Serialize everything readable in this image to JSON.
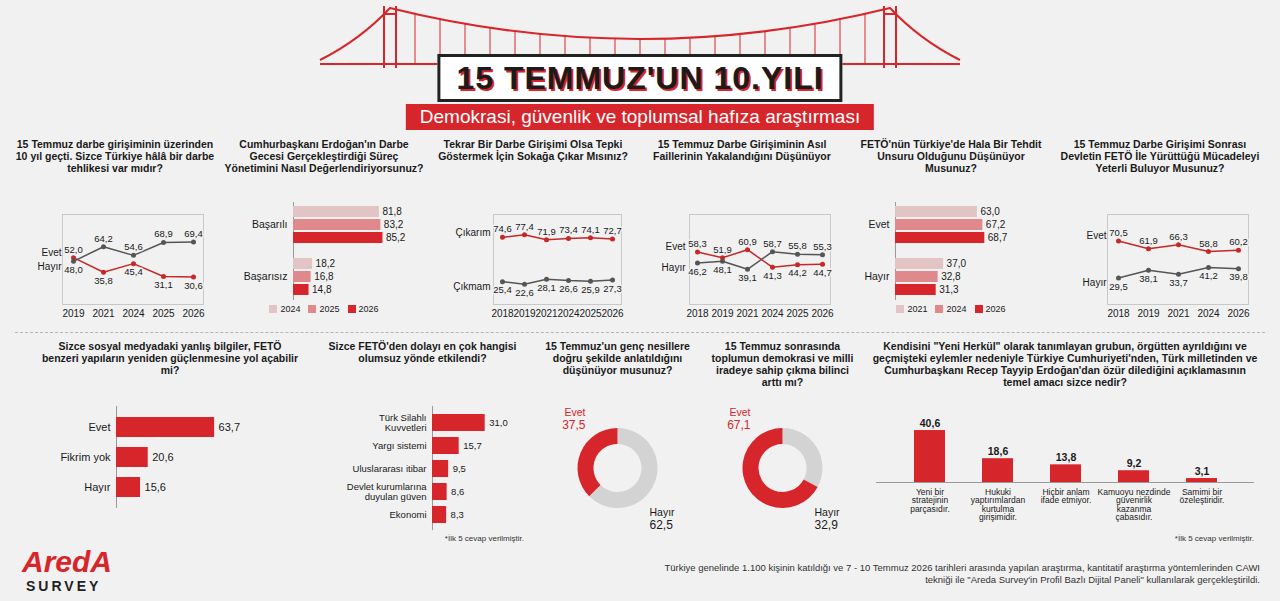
{
  "header": {
    "title": "15 TEMMUZ'UN 10.YILI",
    "subtitle": "Demokrasi, güvenlik ve toplumsal hafıza araştırması"
  },
  "logo": {
    "text": "AredA",
    "subtext": "SURVEY"
  },
  "source_note": "Türkiye genelinde 1.100 kişinin katıldığı ve 7 - 10 Temmuz 2026 tarihleri arasında yapılan araştırma, kantitatif araştırma yöntemlerinden CAWI tekniği ile \"Areda Survey'in Profil Bazlı Dijital Paneli\" kullanılarak gerçekleştirildi.",
  "chart_data": [
    {
      "type": "line",
      "title": "15 Temmuz darbe girişiminin üzerinden 10 yıl geçti. Sizce Türkiye hâlâ bir darbe tehlikesi var mıdır?",
      "categories": [
        "2019",
        "2021",
        "2024",
        "2025",
        "2026"
      ],
      "series": [
        {
          "name": "Evet",
          "color": "#c62828",
          "values": [
            52.0,
            35.8,
            45.4,
            31.1,
            30.6
          ],
          "value_labels": [
            "52,0",
            "35,8",
            "45,4",
            "31,1",
            "30,6"
          ]
        },
        {
          "name": "Hayır",
          "color": "#555555",
          "values": [
            48.0,
            64.2,
            54.6,
            68.9,
            69.4
          ],
          "value_labels": [
            "48,0",
            "64,2",
            "54,6",
            "68,9",
            "69,4"
          ]
        }
      ],
      "ylim": [
        0,
        100
      ],
      "data_labels": true,
      "tick_labels": "x",
      "marker": "circle"
    },
    {
      "type": "bar",
      "orientation": "horizontal",
      "title": "Cumhurbaşkanı Erdoğan'ın Darbe Gecesi Gerçekleştirdiği Süreç Yönetimini Nasıl Değerlendiriyorsunuz?",
      "categories": [
        "Başarılı",
        "Başarısız"
      ],
      "series": [
        {
          "name": "2024",
          "color": "#e2c4c5",
          "values": [
            81.8,
            18.2
          ],
          "value_labels": [
            "81,8",
            "18,2"
          ]
        },
        {
          "name": "2025",
          "color": "#e0898c",
          "values": [
            83.2,
            16.8
          ],
          "value_labels": [
            "83,2",
            "16,8"
          ]
        },
        {
          "name": "2026",
          "color": "#d7262b",
          "values": [
            85.2,
            14.8
          ],
          "value_labels": [
            "85,2",
            "14,8"
          ]
        }
      ],
      "xlim": [
        0,
        100
      ],
      "data_labels": true,
      "tick_labels": "y",
      "legend": "bottom"
    },
    {
      "type": "line",
      "title": "Tekrar Bir Darbe Girişimi Olsa Tepki Göstermek İçin Sokağa Çıkar Mısınız?",
      "categories": [
        "2018",
        "2019",
        "2021",
        "2024",
        "2025",
        "2026"
      ],
      "series": [
        {
          "name": "Çıkarım",
          "color": "#c62828",
          "values": [
            74.6,
            77.4,
            71.9,
            73.4,
            74.1,
            72.7
          ],
          "value_labels": [
            "74,6",
            "77,4",
            "71,9",
            "73,4",
            "74,1",
            "72,7"
          ]
        },
        {
          "name": "Çıkmam",
          "color": "#555555",
          "values": [
            25.4,
            22.6,
            28.1,
            26.6,
            25.9,
            27.3
          ],
          "value_labels": [
            "25,4",
            "22,6",
            "28,1",
            "26,6",
            "25,9",
            "27,3"
          ]
        }
      ],
      "ylim": [
        0,
        100
      ],
      "data_labels": true,
      "tick_labels": "x",
      "marker": "circle"
    },
    {
      "type": "line",
      "title": "15 Temmuz Darbe Girişiminin Asıl Faillerinin Yakalandığını Düşünüyor",
      "categories": [
        "2018",
        "2019",
        "2021",
        "2024",
        "2025",
        "2026"
      ],
      "series": [
        {
          "name": "Evet",
          "color": "#c62828",
          "values": [
            58.3,
            51.9,
            60.9,
            41.3,
            44.2,
            44.7
          ],
          "value_labels": [
            "58,3",
            "51,9",
            "60,9",
            "41,3",
            "44,2",
            "44,7"
          ]
        },
        {
          "name": "Hayır",
          "color": "#555555",
          "values": [
            46.2,
            48.1,
            39.1,
            58.7,
            55.8,
            55.3
          ],
          "value_labels": [
            "46,2",
            "48,1",
            "39,1",
            "58,7",
            "55,8",
            "55,3"
          ]
        }
      ],
      "ylim": [
        0,
        100
      ],
      "data_labels": true,
      "tick_labels": "x",
      "marker": "circle"
    },
    {
      "type": "bar",
      "orientation": "horizontal",
      "title": "FETÖ'nün Türkiye'de Hala Bir Tehdit Unsuru Olduğunu Düşünüyor Musunuz?",
      "categories": [
        "Evet",
        "Hayır"
      ],
      "series": [
        {
          "name": "2021",
          "color": "#e2c4c5",
          "values": [
            63.0,
            37.0
          ],
          "value_labels": [
            "63,0",
            "37,0"
          ]
        },
        {
          "name": "2024",
          "color": "#e0898c",
          "values": [
            67.2,
            32.8
          ],
          "value_labels": [
            "67,2",
            "32,8"
          ]
        },
        {
          "name": "2026",
          "color": "#d7262b",
          "values": [
            68.7,
            31.3
          ],
          "value_labels": [
            "68,7",
            "31,3"
          ]
        }
      ],
      "xlim": [
        0,
        100
      ],
      "data_labels": true,
      "tick_labels": "y",
      "legend": "bottom"
    },
    {
      "type": "line",
      "title": "15 Temmuz Darbe Girişimi Sonrası Devletin FETÖ İle Yürüttüğü Mücadeleyi Yeterli Buluyor Musunuz?",
      "categories": [
        "2018",
        "2019",
        "2021",
        "2024",
        "2026"
      ],
      "series": [
        {
          "name": "Evet",
          "color": "#c62828",
          "values": [
            70.5,
            61.9,
            66.3,
            58.8,
            60.2
          ],
          "value_labels": [
            "70,5",
            "61,9",
            "66,3",
            "58,8",
            "60,2"
          ]
        },
        {
          "name": "Hayır",
          "color": "#555555",
          "values": [
            29.5,
            38.1,
            33.7,
            41.2,
            39.8
          ],
          "value_labels": [
            "29,5",
            "38,1",
            "33,7",
            "41,2",
            "39,8"
          ]
        }
      ],
      "ylim": [
        0,
        100
      ],
      "data_labels": true,
      "tick_labels": "x",
      "marker": "circle"
    },
    {
      "type": "bar",
      "orientation": "horizontal",
      "title": "Sizce sosyal medyadaki yanlış bilgiler, FETÖ benzeri yapıların yeniden güçlenmesine yol açabilir mi?",
      "categories": [
        "Evet",
        "Fikrim yok",
        "Hayır"
      ],
      "values": [
        63.7,
        20.6,
        15.6
      ],
      "value_labels": [
        "63,7",
        "20,6",
        "15,6"
      ],
      "color": "#d7262b",
      "xlim": [
        0,
        100
      ],
      "data_labels": true,
      "tick_labels": "y"
    },
    {
      "type": "bar",
      "orientation": "horizontal",
      "title": "Sizce FETÖ'den dolayı en çok hangisi olumsuz yönde etkilendi?",
      "categories": [
        "Türk Silahlı Kuvvetleri",
        "Yargı sistemi",
        "Uluslararası itibar",
        "Devlet kurumlarına duyulan güven",
        "Ekonomi"
      ],
      "values": [
        31.0,
        15.7,
        9.5,
        8.6,
        8.3
      ],
      "value_labels": [
        "31,0",
        "15,7",
        "9,5",
        "8,6",
        "8,3"
      ],
      "color": "#d7262b",
      "xlim": [
        0,
        40
      ],
      "data_labels": true,
      "tick_labels": "y",
      "annotations": [
        "*İlk 5 cevap verilmiştir."
      ]
    },
    {
      "type": "pie",
      "title": "15 Temmuz'un genç nesillere doğru şekilde anlatıldığını düşünüyor musunuz?",
      "categories": [
        "Evet",
        "Hayır"
      ],
      "values": [
        37.5,
        62.5
      ],
      "value_labels": [
        "37,5",
        "62,5"
      ],
      "colors": [
        "#d7262b",
        "#d3d3d3"
      ],
      "data_labels": true
    },
    {
      "type": "pie",
      "title": "15 Temmuz sonrasında toplumun demokrasi ve milli iradeye sahip çıkma bilinci arttı mı?",
      "categories": [
        "Evet",
        "Hayır"
      ],
      "values": [
        67.1,
        32.9
      ],
      "value_labels": [
        "67,1",
        "32,9"
      ],
      "colors": [
        "#d7262b",
        "#d3d3d3"
      ],
      "data_labels": true
    },
    {
      "type": "bar",
      "title": "Kendisini \"Yeni Herkül\" olarak tanımlayan grubun, örgütten ayrıldığını ve geçmişteki eylemler nedeniyle Türkiye Cumhuriyeti'nden, Türk milletinden ve Cumhurbaşkanı Recep Tayyip Erdoğan'dan özür dilediğini açıklamasının temel amacı sizce nedir?",
      "categories": [
        "Yeni bir stratejinin parçasıdır.",
        "Hukuki yaptırımlardan kurtulma girişimidir.",
        "Hiçbir anlam ifade etmiyor.",
        "Kamuoyu nezdinde güvenirlik kazanma çabasıdır.",
        "Samimi bir özeleştiridir."
      ],
      "values": [
        40.6,
        18.6,
        13.8,
        9.2,
        3.1
      ],
      "value_labels": [
        "40,6",
        "18,6",
        "13,8",
        "9,2",
        "3,1"
      ],
      "color": "#d7262b",
      "ylim": [
        0,
        50
      ],
      "data_labels": true,
      "tick_labels": "x",
      "annotations": [
        "*İlk 5 cevap verilmiştir."
      ]
    }
  ]
}
